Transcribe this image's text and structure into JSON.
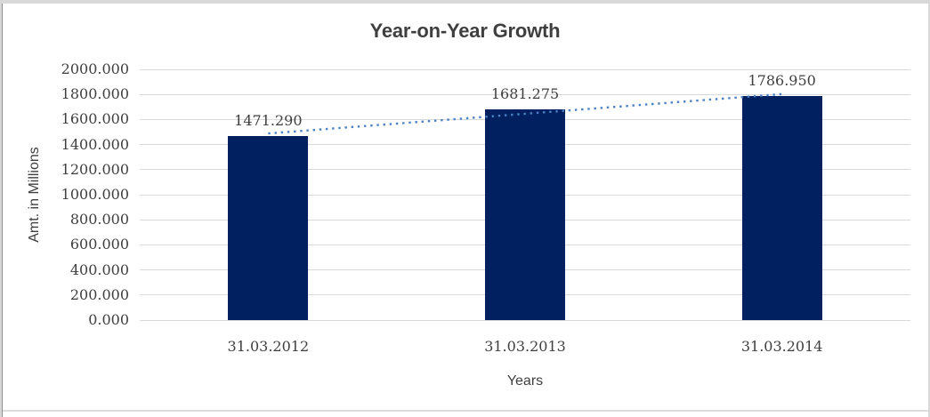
{
  "chart_data": {
    "type": "bar",
    "title": "Year-on-Year Growth",
    "categories": [
      "31.03.2012",
      "31.03.2013",
      "31.03.2014"
    ],
    "values": [
      1471.29,
      1681.275,
      1786.95
    ],
    "data_labels": [
      "1471.290",
      "1681.275",
      "1786.950"
    ],
    "xlabel": "Years",
    "ylabel": "Amt. in Millions",
    "ylim": [
      0,
      2000
    ],
    "ytick_step": 200,
    "ytick_labels": [
      "0.000",
      "200.000",
      "400.000",
      "600.000",
      "800.000",
      "1000.000",
      "1200.000",
      "1400.000",
      "1600.000",
      "1800.000",
      "2000.000"
    ],
    "grid": true,
    "legend": "none",
    "bar_color": "#002060",
    "gridline_color": "#d9d9d9",
    "text_color": "#3f3f3f",
    "trendline": {
      "type": "linear",
      "style": "dotted",
      "color": "#4a80c4"
    }
  }
}
